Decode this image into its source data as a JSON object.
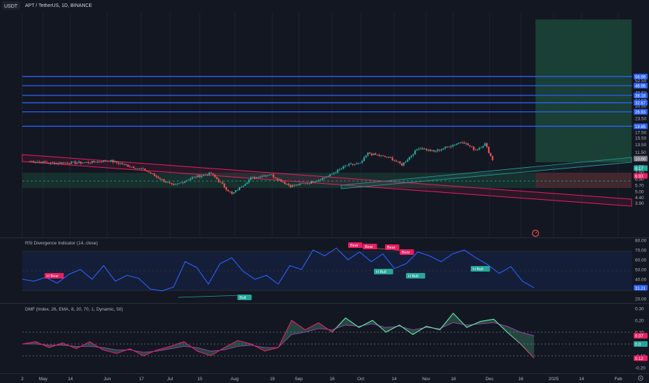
{
  "header": {
    "currency": "USDT",
    "symbol_line": "APT / TetherUS, 1D, BINANCE"
  },
  "colors": {
    "background": "#131722",
    "up": "#26a69a",
    "down": "#ef5350",
    "level_line": "#2962ff",
    "rsi_line": "#2962ff",
    "dmf_up": "#69f0ae",
    "dmf_down": "#e91e63",
    "target_zone": "#1e4d3c",
    "stop_zone": "#4a2b30",
    "support_zone": "#1b4436"
  },
  "price_axis": {
    "labels": [
      "52.50",
      "40.50",
      "34.50",
      "30.50",
      "23.50",
      "17.50",
      "15.50",
      "13.50",
      "11.50",
      "10.00",
      "8.50",
      "7.50",
      "6.50",
      "5.70",
      "5.00",
      "4.40",
      "3.90"
    ],
    "level_tags": [
      "56.99",
      "46.95",
      "38.18",
      "32.67",
      "26.93",
      "19.85",
      "8.17",
      "6.93"
    ],
    "current_tag": "10.00"
  },
  "rsi_panel": {
    "title": "RSI Divergence Indicator (14, close)",
    "axis_labels": [
      "80.00",
      "70.00",
      "60.00",
      "50.00",
      "40.00",
      "30.00",
      "20.00"
    ],
    "current_value": "31.21",
    "signals": [
      "H Bear",
      "Bull",
      "Bear",
      "Bear",
      "Bear",
      "Bear",
      "H Bull",
      "H Bull",
      "H Bull"
    ]
  },
  "dmf_panel": {
    "title": "DMF (Index, 26, EMA, 8, 20, 70, 1, Dynamic, 50)",
    "axis_labels": [
      "0.30",
      "0.20",
      "0.10",
      "0.00",
      "-0.10",
      "-0.20"
    ],
    "tags": [
      "0.07",
      "0.0",
      "0.12"
    ]
  },
  "time_axis": [
    "2",
    "May",
    "14",
    "Jun",
    "17",
    "Jul",
    "15",
    "Aug",
    "19",
    "Sep",
    "16",
    "Oct",
    "14",
    "Nov",
    "18",
    "Dec",
    "16",
    "2025",
    "14",
    "Feb"
  ],
  "chart_data": [
    {
      "type": "candlestick",
      "title": "APT / TetherUS, 1D, BINANCE",
      "y_scale": "log",
      "ylim": [
        3.6,
        64
      ],
      "key_points": [
        {
          "x": "Apr 20",
          "y": 9.5
        },
        {
          "x": "May 1",
          "y": 9.1
        },
        {
          "x": "May 20",
          "y": 9.2
        },
        {
          "x": "Jun 1",
          "y": 9.6
        },
        {
          "x": "Jun 20",
          "y": 7.8
        },
        {
          "x": "Jul 5",
          "y": 5.6
        },
        {
          "x": "Jul 15",
          "y": 6.7
        },
        {
          "x": "Jul 25",
          "y": 7.3
        },
        {
          "x": "Aug 5",
          "y": 4.7
        },
        {
          "x": "Aug 15",
          "y": 6.6
        },
        {
          "x": "Aug 25",
          "y": 7.2
        },
        {
          "x": "Sep 5",
          "y": 5.6
        },
        {
          "x": "Sep 15",
          "y": 6.0
        },
        {
          "x": "Sep 25",
          "y": 6.9
        },
        {
          "x": "Oct 5",
          "y": 8.7
        },
        {
          "x": "Oct 12",
          "y": 9.0
        },
        {
          "x": "Oct 16",
          "y": 11.2
        },
        {
          "x": "Oct 28",
          "y": 10.1
        },
        {
          "x": "Nov 3",
          "y": 8.8
        },
        {
          "x": "Nov 12",
          "y": 12.6
        },
        {
          "x": "Nov 20",
          "y": 11.6
        },
        {
          "x": "Dec 5",
          "y": 14.4
        },
        {
          "x": "Dec 12",
          "y": 12.0
        },
        {
          "x": "Dec 17",
          "y": 13.7
        },
        {
          "x": "Dec 21",
          "y": 9.7
        }
      ],
      "horizontal_levels": [
        56.99,
        46.95,
        38.18,
        32.67,
        26.93,
        19.85
      ]
    },
    {
      "type": "line",
      "title": "RSI Divergence Indicator (14, close)",
      "ylim": [
        20,
        80
      ],
      "series": [
        {
          "values": [
            40,
            38,
            42,
            36,
            45,
            50,
            40,
            54,
            38,
            44,
            41,
            30,
            28,
            32,
            58,
            52,
            35,
            56,
            62,
            48,
            40,
            44,
            35,
            54,
            50,
            70,
            64,
            72,
            60,
            68,
            58,
            66,
            51,
            56,
            68,
            64,
            58,
            66,
            70,
            62,
            55,
            46,
            53,
            38,
            31.21
          ]
        }
      ]
    },
    {
      "type": "line",
      "title": "DMF (Index, 26, EMA, 8, 20, 70, 1, Dynamic, 50)",
      "ylim": [
        -0.25,
        0.35
      ],
      "series": [
        {
          "values": [
            0.0,
            0.02,
            -0.03,
            0.01,
            -0.04,
            0.02,
            -0.05,
            -0.08,
            -0.04,
            -0.1,
            -0.05,
            -0.02,
            0.02,
            -0.06,
            -0.1,
            -0.03,
            0.03,
            0.0,
            -0.06,
            -0.03,
            0.2,
            0.12,
            0.18,
            0.1,
            0.22,
            0.14,
            0.2,
            0.1,
            0.16,
            0.08,
            0.15,
            0.12,
            0.26,
            0.14,
            0.19,
            0.21,
            0.1,
            0.0,
            -0.12
          ]
        },
        {
          "values": [
            0.0,
            0.0,
            -0.01,
            -0.01,
            -0.02,
            -0.02,
            -0.03,
            -0.05,
            -0.05,
            -0.07,
            -0.06,
            -0.04,
            -0.02,
            -0.03,
            -0.06,
            -0.05,
            -0.02,
            -0.01,
            -0.03,
            -0.03,
            0.08,
            0.1,
            0.13,
            0.12,
            0.16,
            0.15,
            0.17,
            0.14,
            0.15,
            0.12,
            0.14,
            0.13,
            0.18,
            0.16,
            0.17,
            0.18,
            0.15,
            0.1,
            0.07
          ]
        }
      ]
    }
  ]
}
